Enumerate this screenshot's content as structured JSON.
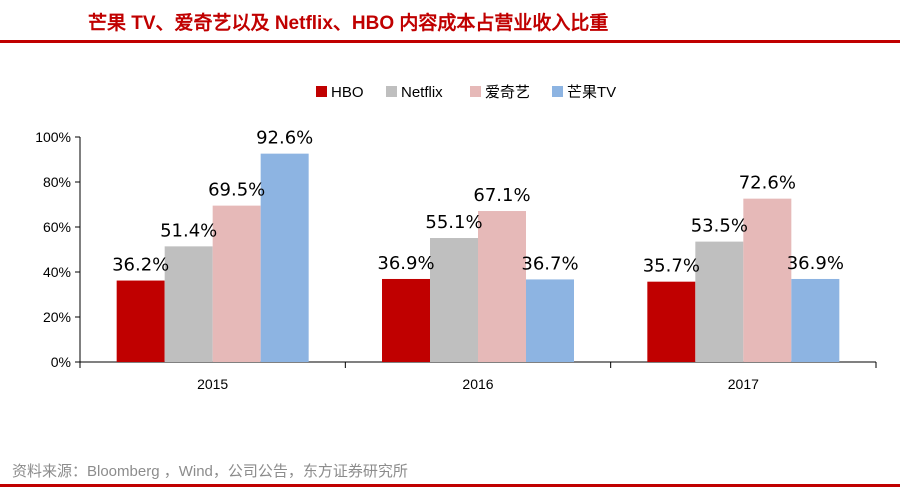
{
  "page": {
    "title": "芒果 TV、爱奇艺以及 Netflix、HBO 内容成本占营业收入比重",
    "source": "资料来源：Bloomberg ，Wind，公司公告，东方证券研究所",
    "accent_color": "#c00000"
  },
  "chart_data": {
    "type": "bar",
    "title": "芒果 TV、爱奇艺以及 Netflix、HBO 内容成本占营业收入比重",
    "xlabel": "",
    "ylabel": "",
    "ylim": [
      0,
      100
    ],
    "yticks": [
      0,
      20,
      40,
      60,
      80,
      100
    ],
    "ytick_labels": [
      "0%",
      "20%",
      "40%",
      "60%",
      "80%",
      "100%"
    ],
    "categories": [
      "2015",
      "2016",
      "2017"
    ],
    "legend_position": "top-center",
    "grid": false,
    "series": [
      {
        "name": "HBO",
        "color": "#c00000",
        "values": [
          36.2,
          36.9,
          35.7
        ],
        "labels": [
          "36.2%",
          "36.9%",
          "35.7%"
        ]
      },
      {
        "name": "Netflix",
        "color": "#bfbfbf",
        "values": [
          51.4,
          55.1,
          53.5
        ],
        "labels": [
          "51.4%",
          "55.1%",
          "53.5%"
        ]
      },
      {
        "name": "爱奇艺",
        "color": "#e6b9b8",
        "values": [
          69.5,
          67.1,
          72.6
        ],
        "labels": [
          "69.5%",
          "67.1%",
          "72.6%"
        ]
      },
      {
        "name": "芒果TV",
        "color": "#8db4e2",
        "values": [
          92.6,
          36.7,
          36.9
        ],
        "labels": [
          "92.6%",
          "36.7%",
          "36.9%"
        ]
      }
    ]
  }
}
